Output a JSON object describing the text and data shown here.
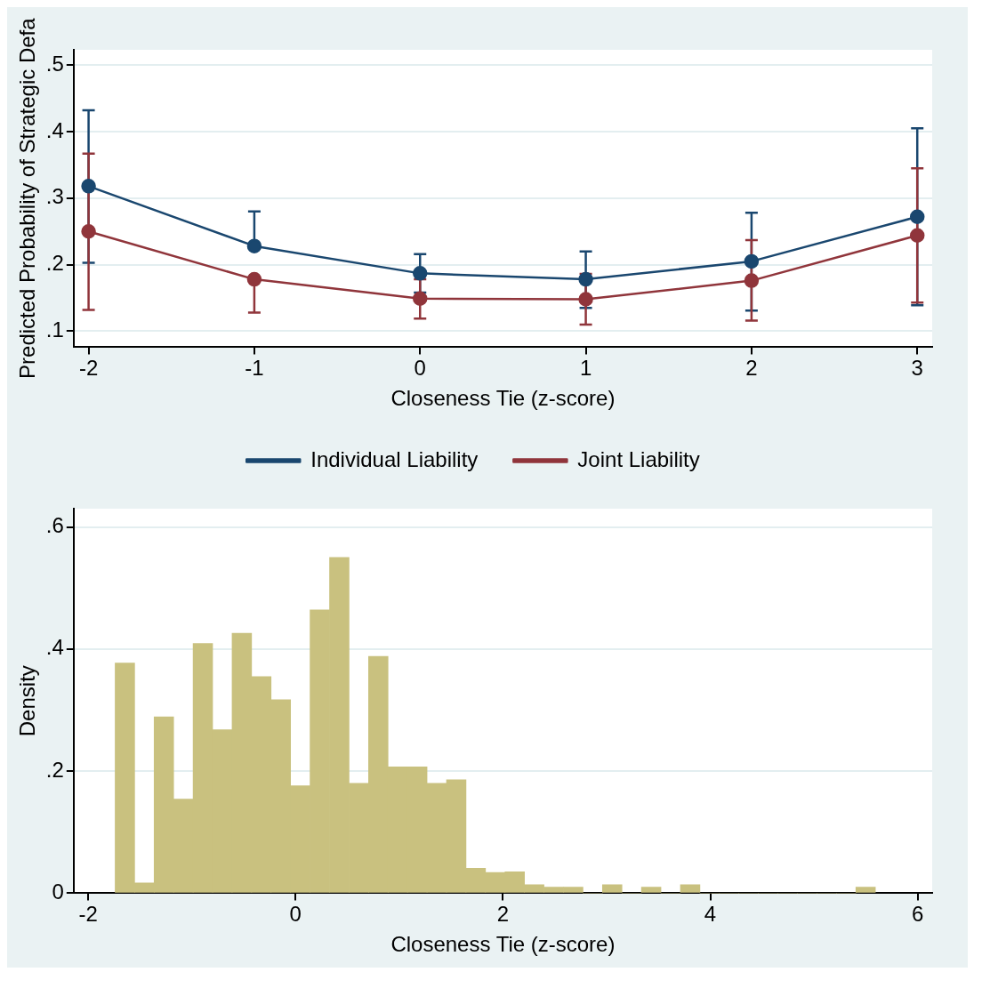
{
  "chart_data": [
    {
      "type": "line",
      "xlabel": "Closeness Tie (z-score)",
      "ylabel": "Predicted Probability of Strategic Defa",
      "x": [
        -2,
        -1,
        0,
        1,
        2,
        3
      ],
      "xlim": [
        -2.09,
        3.09
      ],
      "xticks": [
        -2,
        -1,
        0,
        1,
        2,
        3
      ],
      "ylim": [
        0.076,
        0.523
      ],
      "yticks": [
        {
          "value": 0.1,
          "label": ".1"
        },
        {
          "value": 0.2,
          "label": ".2"
        },
        {
          "value": 0.3,
          "label": ".3"
        },
        {
          "value": 0.4,
          "label": ".4"
        },
        {
          "value": 0.5,
          "label": ".5"
        }
      ],
      "grid": "y",
      "legend": "bottom",
      "marker": "circle",
      "line_style": "solid",
      "series": [
        {
          "name": "Individual Liability",
          "color": "#1a476f",
          "values": [
            0.318,
            0.228,
            0.187,
            0.178,
            0.205,
            0.272
          ],
          "errors": [
            [
              0.203,
              0.432
            ],
            [
              0.228,
              0.28
            ],
            [
              0.158,
              0.216
            ],
            [
              0.135,
              0.22
            ],
            [
              0.131,
              0.278
            ],
            [
              0.139,
              0.405
            ]
          ]
        },
        {
          "name": "Joint Liability",
          "color": "#90353b",
          "values": [
            0.25,
            0.178,
            0.149,
            0.148,
            0.176,
            0.244
          ],
          "errors": [
            [
              0.132,
              0.367
            ],
            [
              0.128,
              0.178
            ],
            [
              0.119,
              0.178
            ],
            [
              0.11,
              0.186
            ],
            [
              0.116,
              0.237
            ],
            [
              0.143,
              0.345
            ]
          ]
        }
      ]
    },
    {
      "type": "histogram",
      "xlabel": "Closeness Tie (z-score)",
      "ylabel": "Density",
      "color": "#c9c17f",
      "xlim": [
        -2.14,
        6.14
      ],
      "xticks": [
        -2,
        0,
        2,
        4,
        6
      ],
      "ylim": [
        0,
        0.63
      ],
      "yticks": [
        0,
        {
          "value": 0.2,
          "label": ".2"
        },
        {
          "value": 0.4,
          "label": ".4"
        },
        {
          "value": 0.6,
          "label": ".6"
        }
      ],
      "grid": "y",
      "bins": [
        -1.74,
        -1.552,
        -1.364,
        -1.176,
        -0.988,
        -0.8,
        -0.612,
        -0.424,
        -0.236,
        -0.048,
        0.14,
        0.328,
        0.516,
        0.704,
        0.892,
        1.08,
        1.268,
        1.456,
        1.644,
        1.832,
        2.02,
        2.208,
        2.396,
        2.584,
        2.772,
        2.96,
        3.148,
        3.336,
        3.524,
        3.712,
        3.9,
        4.088,
        4.276,
        4.464,
        4.652,
        4.84,
        5.028,
        5.216,
        5.404,
        5.592
      ],
      "values": [
        0.377,
        0.017,
        0.289,
        0.154,
        0.409,
        0.268,
        0.426,
        0.355,
        0.317,
        0.176,
        0.464,
        0.55,
        0.18,
        0.388,
        0.207,
        0.207,
        0.18,
        0.186,
        0.041,
        0.034,
        0.035,
        0.014,
        0.01,
        0.01,
        0,
        0.014,
        0,
        0.01,
        0,
        0.014,
        0,
        0,
        0,
        0,
        0,
        0,
        0,
        0,
        0.01
      ]
    }
  ]
}
